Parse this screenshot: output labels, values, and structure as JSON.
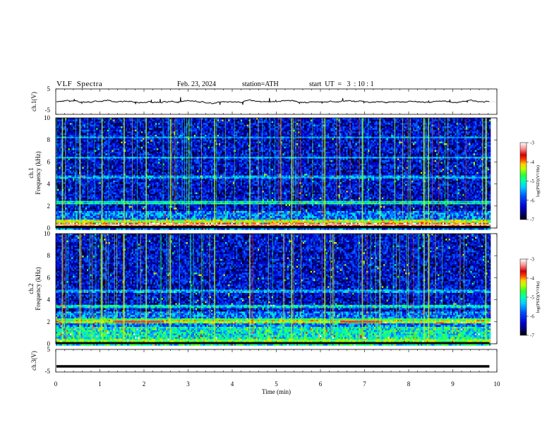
{
  "header": {
    "title": "VLF  Spectra",
    "date": "Feb. 23, 2024",
    "station": "station=ATH",
    "start": "start  UT  =   3  : 10 : 1"
  },
  "colors": {
    "trace": "#000000",
    "colormap": [
      "#000000",
      "#000060",
      "#0000c8",
      "#0028ff",
      "#00b4ff",
      "#00ffd0",
      "#18ff48",
      "#b4ff00",
      "#ffdc00",
      "#ff6400",
      "#e00000",
      "#ffb0b0",
      "#ffffff"
    ]
  },
  "chart_data": [
    {
      "type": "line",
      "panel": "ch1-waveform",
      "ylabel": "ch.1(V)",
      "yticks": [
        "5",
        "-5"
      ],
      "ylim": [
        -5,
        5
      ],
      "xlim": [
        0,
        10
      ],
      "description_level": 0.4,
      "x_end": 9.83
    },
    {
      "type": "heatmap",
      "panel": "ch1-spectrogram",
      "ylabel": [
        "ch.1",
        "Frequency  (kHz)"
      ],
      "yticks": [
        "10",
        "8",
        "6",
        "4",
        "2",
        "0"
      ],
      "ylim": [
        0,
        10
      ],
      "xlim": [
        0,
        10
      ],
      "x_end": 9.83,
      "colorbar": {
        "label": "log(PSD)(V²/Hz)",
        "ticks": [
          "-3",
          "-4",
          "-5",
          "-6",
          "-7"
        ],
        "range": [
          -7,
          -3
        ]
      },
      "bands_khz": [
        {
          "f": 0.3,
          "level": -3.2
        },
        {
          "f": 0.6,
          "level": -4.2
        },
        {
          "f": 2.2,
          "level": -4.8
        },
        {
          "f": 2.4,
          "level": -5.0
        },
        {
          "f": 4.6,
          "level": -5.3
        },
        {
          "f": 6.4,
          "level": -5.3
        },
        {
          "f": 8.2,
          "level": -5.4
        }
      ],
      "sferic_times_min": [
        0.15,
        0.55,
        1.05,
        1.55,
        2.05,
        2.6,
        3.6,
        4.4,
        5.35,
        6.1,
        6.95,
        7.35,
        8.35,
        8.45,
        9.75
      ]
    },
    {
      "type": "heatmap",
      "panel": "ch2-spectrogram",
      "ylabel": [
        "ch.2",
        "Frequency  (kHz)"
      ],
      "yticks": [
        "10",
        "8",
        "6",
        "4",
        "2",
        "0"
      ],
      "ylim": [
        0,
        10
      ],
      "xlim": [
        0,
        10
      ],
      "x_end": 9.83,
      "colorbar": {
        "label": "log(PSD)(V²/Hz)",
        "ticks": [
          "-3",
          "-4",
          "-5",
          "-6",
          "-7"
        ],
        "range": [
          -7,
          -3
        ]
      },
      "bands_khz": [
        {
          "f": 0.3,
          "level": -4.4
        },
        {
          "f": 2.0,
          "level": -4.2
        },
        {
          "f": 2.2,
          "level": -4.6
        },
        {
          "f": 3.4,
          "level": -5.0
        },
        {
          "f": 4.8,
          "level": -5.3
        }
      ],
      "highlight_segments": [
        {
          "t0": 1.3,
          "t1": 2.45,
          "f": 2.0,
          "level": -3.5
        },
        {
          "t0": 6.45,
          "t1": 7.4,
          "f": 2.0,
          "level": -3.5
        }
      ],
      "sferic_times_min": [
        0.15,
        0.55,
        1.05,
        1.55,
        2.05,
        2.6,
        3.6,
        4.4,
        5.35,
        6.1,
        6.95,
        7.35,
        8.35,
        8.45,
        9.75
      ]
    },
    {
      "type": "line",
      "panel": "ch3-waveform",
      "ylabel": "ch.3(V)",
      "yticks": [
        "5",
        "-5"
      ],
      "ylim": [
        -5,
        5
      ],
      "xlim": [
        0,
        10
      ],
      "x_end": 9.83,
      "level": -2.5,
      "xlabel": "Time  (min)",
      "xticks": [
        "0",
        "1",
        "2",
        "3",
        "4",
        "5",
        "6",
        "7",
        "8",
        "9",
        "10"
      ]
    }
  ]
}
